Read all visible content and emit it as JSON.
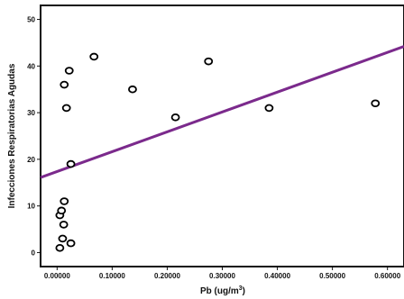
{
  "chart_data": {
    "type": "scatter",
    "xlabel": "Pb (ug/m",
    "xlabel_superscript": "3",
    "xlabel_suffix": ")",
    "ylabel": "Infecciones Respiratorias Agudas",
    "xlim": [
      -0.03,
      0.63
    ],
    "ylim": [
      -3,
      53
    ],
    "x_ticks": [
      {
        "value": 0.0,
        "label": "0.00000"
      },
      {
        "value": 0.1,
        "label": "0.10000"
      },
      {
        "value": 0.2,
        "label": "0.20000"
      },
      {
        "value": 0.3,
        "label": "0.30000"
      },
      {
        "value": 0.4,
        "label": "0.40000"
      },
      {
        "value": 0.5,
        "label": "0.50000"
      },
      {
        "value": 0.6,
        "label": "0.60000"
      }
    ],
    "y_ticks": [
      {
        "value": 0,
        "label": "0"
      },
      {
        "value": 10,
        "label": "10"
      },
      {
        "value": 20,
        "label": "20"
      },
      {
        "value": 30,
        "label": "30"
      },
      {
        "value": 40,
        "label": "40"
      },
      {
        "value": 50,
        "label": "50"
      }
    ],
    "grid": false,
    "series": [
      {
        "marker": "open-circle",
        "color": "#000000",
        "points": [
          {
            "x": 0.005,
            "y": 1
          },
          {
            "x": 0.01,
            "y": 3
          },
          {
            "x": 0.025,
            "y": 2
          },
          {
            "x": 0.012,
            "y": 6
          },
          {
            "x": 0.005,
            "y": 8
          },
          {
            "x": 0.008,
            "y": 9
          },
          {
            "x": 0.013,
            "y": 11
          },
          {
            "x": 0.025,
            "y": 19
          },
          {
            "x": 0.017,
            "y": 31
          },
          {
            "x": 0.013,
            "y": 36
          },
          {
            "x": 0.022,
            "y": 39
          },
          {
            "x": 0.067,
            "y": 42
          },
          {
            "x": 0.137,
            "y": 35
          },
          {
            "x": 0.215,
            "y": 29
          },
          {
            "x": 0.275,
            "y": 41
          },
          {
            "x": 0.385,
            "y": 31
          },
          {
            "x": 0.578,
            "y": 32
          }
        ]
      }
    ],
    "fit_line": {
      "color": "#7b2a8c",
      "start": {
        "x": -0.03,
        "y": 16.1
      },
      "end": {
        "x": 0.63,
        "y": 44.2
      }
    }
  }
}
